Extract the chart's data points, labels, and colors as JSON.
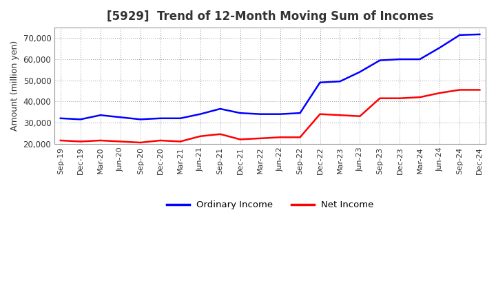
{
  "title": "[5929]  Trend of 12-Month Moving Sum of Incomes",
  "ylabel": "Amount (million yen)",
  "ylim": [
    20000,
    75000
  ],
  "yticks": [
    20000,
    30000,
    40000,
    50000,
    60000,
    70000
  ],
  "background_color": "#ffffff",
  "grid_color": "#999999",
  "ordinary_income_color": "#0000ff",
  "net_income_color": "#ff0000",
  "title_color": "#333333",
  "labels": [
    "Sep-19",
    "Dec-19",
    "Mar-20",
    "Jun-20",
    "Sep-20",
    "Dec-20",
    "Mar-21",
    "Jun-21",
    "Sep-21",
    "Dec-21",
    "Mar-22",
    "Jun-22",
    "Sep-22",
    "Dec-22",
    "Mar-23",
    "Jun-23",
    "Sep-23",
    "Dec-23",
    "Mar-24",
    "Jun-24",
    "Sep-24",
    "Dec-24"
  ],
  "ordinary_income": [
    32000,
    31500,
    33500,
    32500,
    31500,
    32000,
    32000,
    34000,
    36500,
    34500,
    34000,
    34000,
    34500,
    49000,
    49500,
    54000,
    59500,
    60000,
    60000,
    65500,
    71500,
    71800
  ],
  "net_income": [
    21500,
    21000,
    21500,
    21000,
    20500,
    21500,
    21000,
    23500,
    24500,
    22000,
    22500,
    23000,
    23000,
    34000,
    33500,
    33000,
    41500,
    41500,
    42000,
    44000,
    45500,
    45500
  ]
}
